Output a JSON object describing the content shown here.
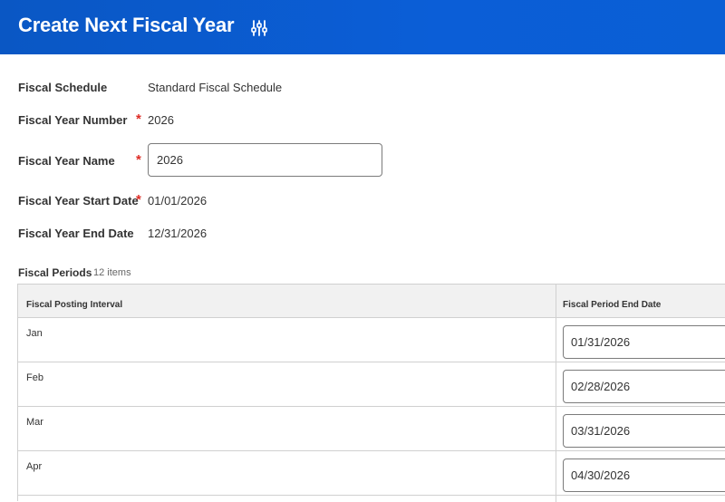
{
  "header": {
    "title": "Create Next Fiscal Year",
    "icon": "sliders-icon",
    "color": "#0b5ed7"
  },
  "form": {
    "fiscal_schedule": {
      "label": "Fiscal Schedule",
      "value": "Standard Fiscal Schedule"
    },
    "fiscal_year_number": {
      "label": "Fiscal Year Number",
      "required": "*",
      "value": "2026"
    },
    "fiscal_year_name": {
      "label": "Fiscal Year Name",
      "required": "*",
      "value": "2026"
    },
    "fiscal_year_start_date": {
      "label": "Fiscal Year Start Date",
      "required": "*",
      "value": "01/01/2026"
    },
    "fiscal_year_end_date": {
      "label": "Fiscal Year End Date",
      "value": "12/31/2026"
    }
  },
  "periods": {
    "title": "Fiscal Periods",
    "count": "12 items",
    "columns": [
      "Fiscal Posting Interval",
      "Fiscal Period End Date"
    ],
    "rows": [
      {
        "interval": "Jan",
        "end_date": "01/31/2026"
      },
      {
        "interval": "Feb",
        "end_date": "02/28/2026"
      },
      {
        "interval": "Mar",
        "end_date": "03/31/2026"
      },
      {
        "interval": "Apr",
        "end_date": "04/30/2026"
      }
    ]
  },
  "colors": {
    "required": "#de2d26",
    "table_header": "#f1f1f1",
    "border": "#d0d0d0"
  }
}
